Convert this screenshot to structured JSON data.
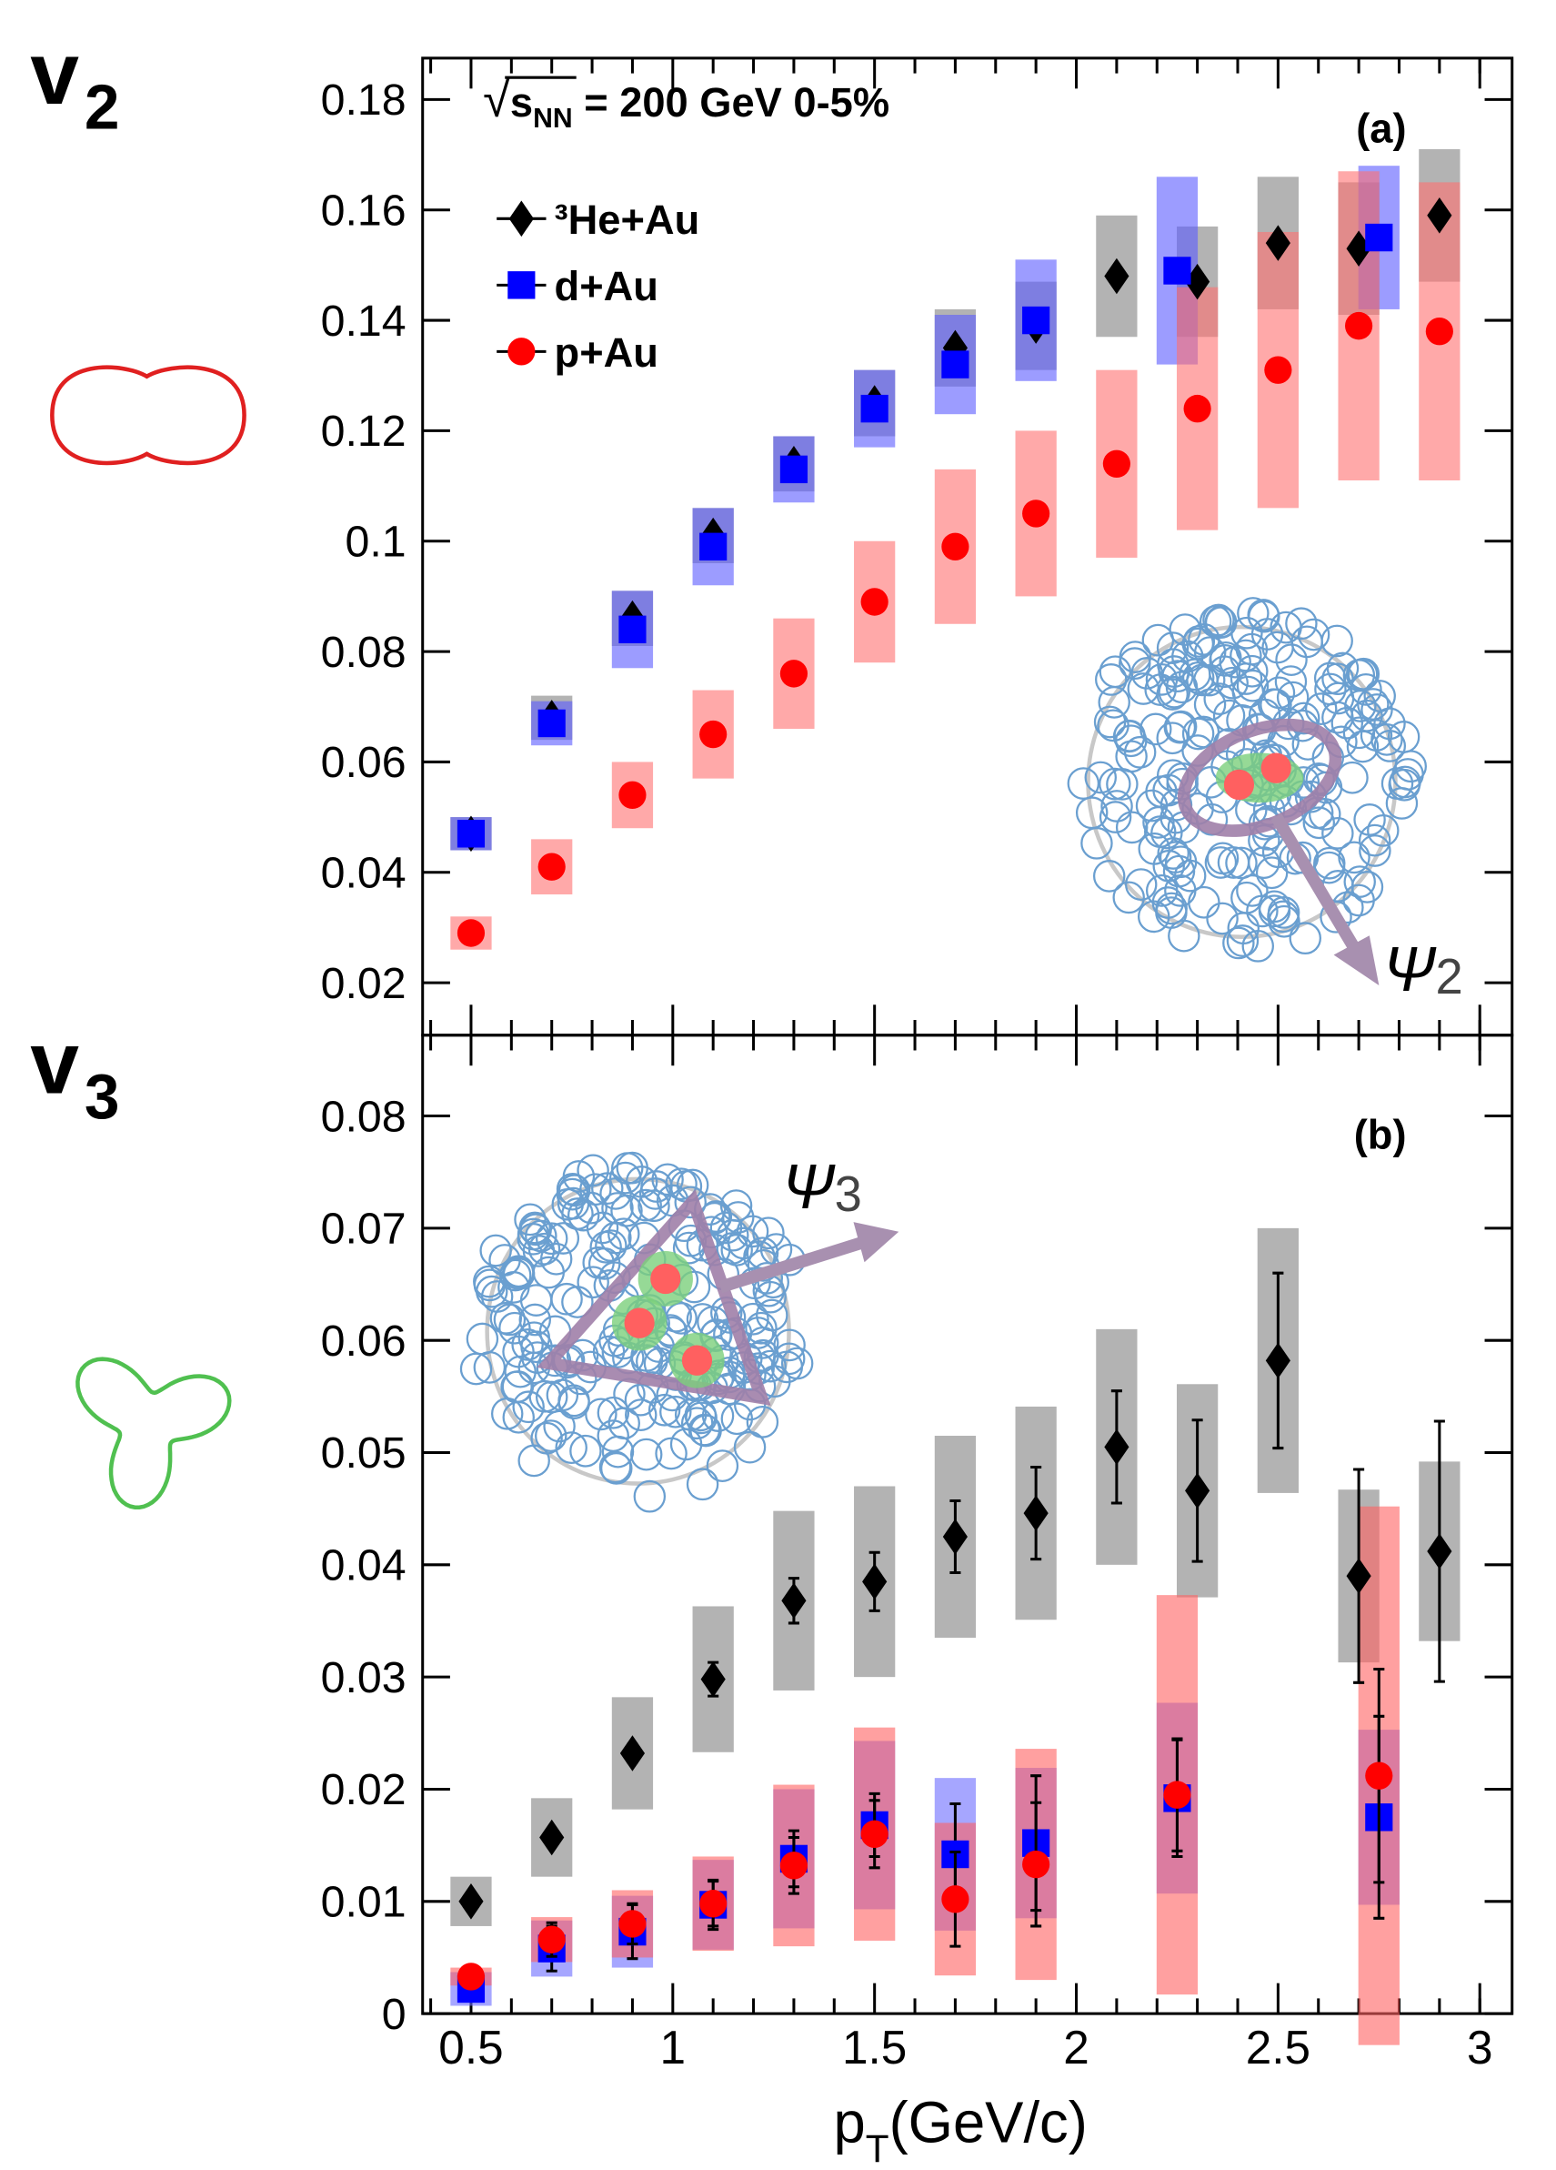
{
  "chart_data": [
    {
      "type": "scatter",
      "panel": "(a)",
      "side_label": [
        "v",
        "2"
      ],
      "annotation": [
        "√",
        "s",
        "NN",
        " = 200 GeV 0-5%"
      ],
      "plane_label": [
        "Ψ",
        "2"
      ],
      "xlim": [
        0.38,
        3.08
      ],
      "xticks": [
        0.5,
        1,
        1.5,
        2,
        2.5,
        3
      ],
      "xminorticks": [
        0.4,
        0.6,
        0.7,
        0.8,
        0.9,
        1.1,
        1.2,
        1.3,
        1.4,
        1.6,
        1.7,
        1.8,
        1.9,
        2.1,
        2.2,
        2.3,
        2.4,
        2.6,
        2.7,
        2.8,
        2.9,
        3.0
      ],
      "ylim": [
        0.0105,
        0.1875
      ],
      "yticks": [
        0.02,
        0.04,
        0.06,
        0.08,
        0.1,
        0.12,
        0.14,
        0.16,
        0.18
      ],
      "legend": "upper left",
      "series": [
        {
          "name": "³He+Au",
          "marker": "diamond",
          "color": "#000000",
          "band_color": "#808080",
          "x": [
            0.5,
            0.7,
            0.9,
            1.1,
            1.3,
            1.5,
            1.7,
            1.9,
            2.1,
            2.3,
            2.5,
            2.7,
            2.9
          ],
          "values": [
            0.047,
            0.068,
            0.086,
            0.101,
            0.114,
            0.125,
            0.135,
            0.139,
            0.148,
            0.147,
            0.154,
            0.153,
            0.159
          ],
          "sys": [
            0.003,
            0.004,
            0.005,
            0.005,
            0.005,
            0.006,
            0.007,
            0.008,
            0.011,
            0.01,
            0.012,
            0.012,
            0.012
          ]
        },
        {
          "name": "d+Au",
          "marker": "square",
          "color": "#0000ff",
          "band_color": "#5a5aff",
          "x": [
            0.5,
            0.7,
            0.9,
            1.1,
            1.3,
            1.5,
            1.7,
            1.9,
            2.25,
            2.75
          ],
          "values": [
            0.047,
            0.067,
            0.084,
            0.099,
            0.113,
            0.124,
            0.132,
            0.14,
            0.149,
            0.155
          ],
          "sys": [
            0.003,
            0.004,
            0.007,
            0.007,
            0.006,
            0.007,
            0.009,
            0.011,
            0.017,
            0.013
          ]
        },
        {
          "name": "p+Au",
          "marker": "circle",
          "color": "#ff0000",
          "band_color": "#ff7070",
          "x": [
            0.5,
            0.7,
            0.9,
            1.1,
            1.3,
            1.5,
            1.7,
            1.9,
            2.1,
            2.3,
            2.5,
            2.7,
            2.9
          ],
          "values": [
            0.029,
            0.041,
            0.054,
            0.065,
            0.076,
            0.089,
            0.099,
            0.105,
            0.114,
            0.124,
            0.131,
            0.139,
            0.138
          ],
          "sys": [
            0.003,
            0.005,
            0.006,
            0.008,
            0.01,
            0.011,
            0.014,
            0.015,
            0.017,
            0.022,
            0.025,
            0.028,
            0.027
          ]
        }
      ]
    },
    {
      "type": "scatter",
      "panel": "(b)",
      "side_label": [
        "v",
        "3"
      ],
      "plane_label": [
        "Ψ",
        "3"
      ],
      "xlabel": [
        "p",
        "T",
        "(GeV/c)"
      ],
      "xlim": [
        0.38,
        3.08
      ],
      "xticks": [
        0.5,
        1,
        1.5,
        2,
        2.5,
        3
      ],
      "xminorticks": [
        0.4,
        0.6,
        0.7,
        0.8,
        0.9,
        1.1,
        1.2,
        1.3,
        1.4,
        1.6,
        1.7,
        1.8,
        1.9,
        2.1,
        2.2,
        2.3,
        2.4,
        2.6,
        2.7,
        2.8,
        2.9,
        3.0
      ],
      "ylim": [
        0,
        0.0872
      ],
      "yticks": [
        0,
        0.01,
        0.02,
        0.03,
        0.04,
        0.05,
        0.06,
        0.07,
        0.08
      ],
      "series": [
        {
          "marker": "diamond",
          "color": "#000000",
          "band_color": "#808080",
          "x": [
            0.5,
            0.7,
            0.9,
            1.1,
            1.3,
            1.5,
            1.7,
            1.9,
            2.1,
            2.3,
            2.5,
            2.7,
            2.9
          ],
          "values": [
            0.01,
            0.0157,
            0.0232,
            0.0298,
            0.0368,
            0.0385,
            0.0425,
            0.0446,
            0.0505,
            0.0466,
            0.0582,
            0.039,
            0.0412
          ],
          "sys": [
            0.0022,
            0.0035,
            0.005,
            0.0065,
            0.008,
            0.0085,
            0.009,
            0.0095,
            0.0105,
            0.0095,
            0.0118,
            0.0077,
            0.008
          ],
          "stat": [
            0.0005,
            0.0007,
            0.0008,
            0.0015,
            0.002,
            0.0026,
            0.0032,
            0.0041,
            0.005,
            0.0063,
            0.0078,
            0.0095,
            0.0116
          ]
        },
        {
          "marker": "square",
          "color": "#0000ff",
          "band_color": "#6a6aff",
          "x": [
            0.5,
            0.7,
            0.9,
            1.1,
            1.3,
            1.5,
            1.7,
            1.9,
            2.25,
            2.75
          ],
          "values": [
            0.0022,
            0.0058,
            0.0073,
            0.0097,
            0.0138,
            0.0168,
            0.0142,
            0.0152,
            0.0192,
            0.0175
          ],
          "sys": [
            0.0015,
            0.0025,
            0.0032,
            0.004,
            0.0062,
            0.0075,
            0.0068,
            0.0067,
            0.0085,
            0.0078
          ],
          "stat": [
            0.0005,
            0.002,
            0.0024,
            0.0022,
            0.0025,
            0.0028,
            0.0045,
            0.006,
            0.0052,
            0.009
          ]
        },
        {
          "marker": "circle",
          "color": "#ff0000",
          "band_color": "#ff6060",
          "x": [
            0.5,
            0.7,
            0.9,
            1.1,
            1.3,
            1.5,
            1.7,
            1.9,
            2.25,
            2.75
          ],
          "values": [
            0.0033,
            0.0066,
            0.008,
            0.0098,
            0.0132,
            0.016,
            0.0102,
            0.0133,
            0.0195,
            0.0212
          ],
          "sys": [
            0.0008,
            0.002,
            0.003,
            0.0042,
            0.0072,
            0.0095,
            0.0068,
            0.0103,
            0.0178,
            0.024
          ],
          "stat": [
            0.0004,
            0.0015,
            0.0018,
            0.002,
            0.0025,
            0.003,
            0.0042,
            0.0055,
            0.005,
            0.0095
          ]
        }
      ]
    }
  ]
}
